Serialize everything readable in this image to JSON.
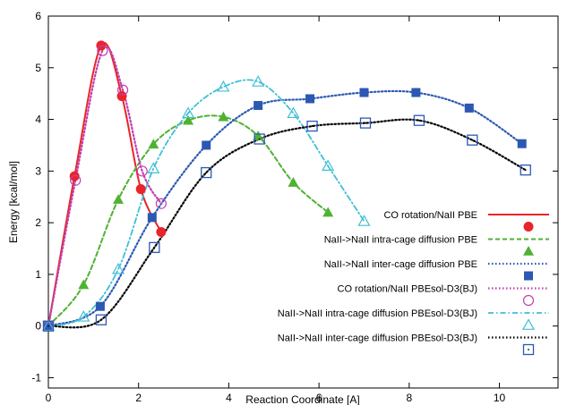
{
  "chart_data": {
    "type": "line",
    "xlabel": "Reaction Coordinate [A]",
    "ylabel": "Energy [kcal/mol]",
    "xlim": [
      0,
      11.3
    ],
    "ylim": [
      -1.2,
      6
    ],
    "xticks": [
      0,
      2,
      4,
      6,
      8,
      10
    ],
    "yticks": [
      -1,
      0,
      1,
      2,
      3,
      4,
      5,
      6
    ],
    "grid": false,
    "legend_position": "bottom-right",
    "series": [
      {
        "name": "CO rotation/NaII PBE",
        "color": "#e8252a",
        "dash": "solid",
        "marker": "filled-circle",
        "x": [
          0,
          0.58,
          1.17,
          1.63,
          2.05,
          2.5
        ],
        "y": [
          0,
          2.9,
          5.43,
          4.45,
          2.65,
          1.82
        ]
      },
      {
        "name": "NaII->NaII intra-cage diffusion PBE",
        "color": "#4fb233",
        "dash": "dashed",
        "marker": "filled-triangle",
        "x": [
          0,
          0.78,
          1.55,
          2.33,
          3.1,
          3.88,
          4.65,
          5.43,
          6.2
        ],
        "y": [
          0,
          0.8,
          2.45,
          3.52,
          3.98,
          4.05,
          3.68,
          2.78,
          2.2
        ]
      },
      {
        "name": "NaII->NaII inter-cage diffusion PBE",
        "color": "#2c58b3",
        "dash": "dotted",
        "marker": "filled-square",
        "x": [
          0,
          1.15,
          2.3,
          3.5,
          4.65,
          5.8,
          7.0,
          8.15,
          9.33,
          10.5
        ],
        "y": [
          0,
          0.38,
          2.1,
          3.5,
          4.27,
          4.4,
          4.52,
          4.52,
          4.22,
          3.53
        ]
      },
      {
        "name": "CO rotation/NaII PBEsol-D3(BJ)",
        "color": "#c040b0",
        "dash": "dotted",
        "marker": "open-circle",
        "x": [
          0,
          0.6,
          1.2,
          1.65,
          2.08,
          2.5
        ],
        "y": [
          0,
          2.82,
          5.33,
          4.57,
          3.0,
          2.37
        ]
      },
      {
        "name": "NaII->NaII intra-cage diffusion PBEsol-D3(BJ)",
        "color": "#3fbfd6",
        "dash": "dash-dot",
        "marker": "open-triangle",
        "x": [
          0,
          0.78,
          1.55,
          2.33,
          3.1,
          3.88,
          4.65,
          5.43,
          6.2,
          7.0
        ],
        "y": [
          0,
          0.18,
          1.1,
          3.05,
          4.12,
          4.63,
          4.73,
          4.12,
          3.1,
          2.03
        ]
      },
      {
        "name": "NaII->NaII inter-cage diffusion PBEsol-D3(BJ)",
        "color": "#000000",
        "dash": "dotted",
        "marker": "open-square-dot",
        "x": [
          0,
          1.17,
          2.35,
          3.5,
          4.68,
          5.85,
          7.03,
          8.22,
          9.4,
          10.58
        ],
        "y": [
          0,
          0.12,
          1.52,
          2.97,
          3.62,
          3.87,
          3.93,
          3.98,
          3.6,
          3.02
        ]
      }
    ]
  }
}
